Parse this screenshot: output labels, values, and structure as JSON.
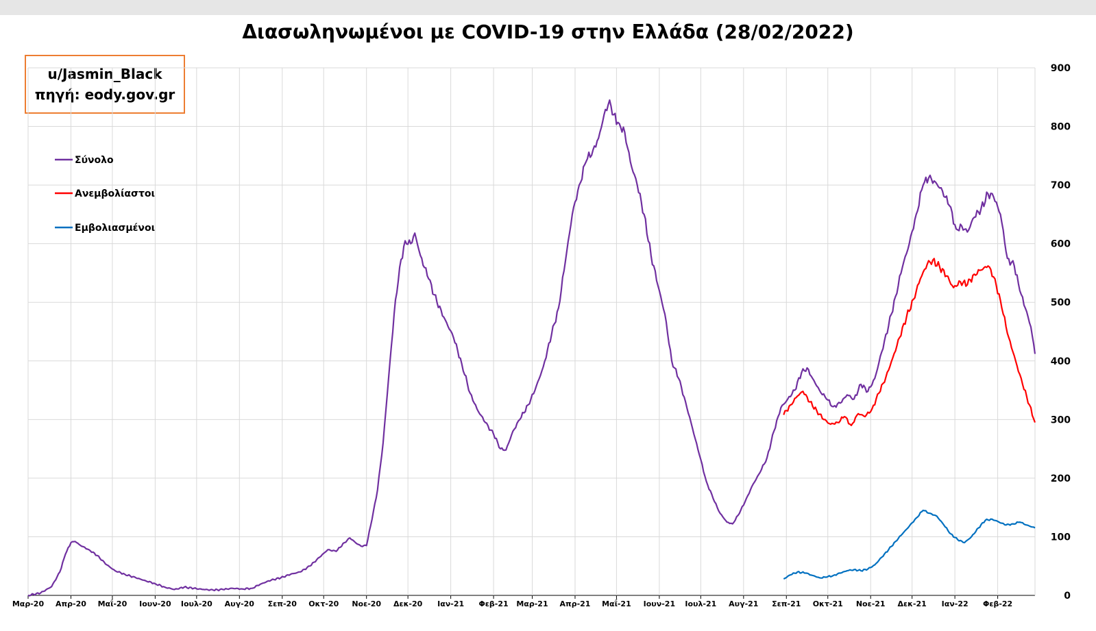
{
  "chart_data": {
    "type": "line",
    "title": "Διασωληνωμένοι με COVID-19 στην Ελλάδα (28/02/2022)",
    "credit": {
      "line1": "u/Jasmin_Black",
      "line2": "πηγή: eody.gov.gr"
    },
    "x_tick_labels": [
      "Μαρ-20",
      "Απρ-20",
      "Μαΐ-20",
      "Ιουν-20",
      "Ιουλ-20",
      "Αυγ-20",
      "Σεπ-20",
      "Οκτ-20",
      "Νοε-20",
      "Δεκ-20",
      "Ιαν-21",
      "Φεβ-21",
      "Μαρ-21",
      "Απρ-21",
      "Μαΐ-21",
      "Ιουν-21",
      "Ιουλ-21",
      "Αυγ-21",
      "Σεπ-21",
      "Οκτ-21",
      "Νοε-21",
      "Δεκ-21",
      "Ιαν-22",
      "Φεβ-22"
    ],
    "x_range": [
      "2020-03-01",
      "2022-02-28"
    ],
    "y_ticks": [
      0,
      100,
      200,
      300,
      400,
      500,
      600,
      700,
      800,
      900
    ],
    "ylim": [
      0,
      900
    ],
    "y_axis_position": "right",
    "grid": true,
    "legend_position": "left",
    "series": [
      {
        "name": "Σύνολο",
        "color": "#7030a0",
        "points": [
          [
            "2020-03-01",
            0
          ],
          [
            "2020-03-10",
            4
          ],
          [
            "2020-03-18",
            15
          ],
          [
            "2020-03-24",
            40
          ],
          [
            "2020-03-28",
            70
          ],
          [
            "2020-04-01",
            90
          ],
          [
            "2020-04-04",
            92
          ],
          [
            "2020-04-08",
            85
          ],
          [
            "2020-04-14",
            78
          ],
          [
            "2020-04-20",
            68
          ],
          [
            "2020-04-27",
            52
          ],
          [
            "2020-05-03",
            42
          ],
          [
            "2020-05-10",
            36
          ],
          [
            "2020-05-18",
            30
          ],
          [
            "2020-05-25",
            25
          ],
          [
            "2020-06-01",
            20
          ],
          [
            "2020-06-08",
            14
          ],
          [
            "2020-06-15",
            10
          ],
          [
            "2020-06-22",
            14
          ],
          [
            "2020-06-29",
            12
          ],
          [
            "2020-07-06",
            10
          ],
          [
            "2020-07-13",
            9
          ],
          [
            "2020-07-20",
            10
          ],
          [
            "2020-07-27",
            12
          ],
          [
            "2020-08-03",
            11
          ],
          [
            "2020-08-10",
            12
          ],
          [
            "2020-08-17",
            20
          ],
          [
            "2020-08-24",
            26
          ],
          [
            "2020-08-31",
            30
          ],
          [
            "2020-09-07",
            36
          ],
          [
            "2020-09-14",
            40
          ],
          [
            "2020-09-21",
            50
          ],
          [
            "2020-09-28",
            65
          ],
          [
            "2020-10-04",
            78
          ],
          [
            "2020-10-10",
            75
          ],
          [
            "2020-10-16",
            90
          ],
          [
            "2020-10-20",
            98
          ],
          [
            "2020-10-24",
            90
          ],
          [
            "2020-10-28",
            84
          ],
          [
            "2020-11-01",
            85
          ],
          [
            "2020-11-05",
            130
          ],
          [
            "2020-11-09",
            180
          ],
          [
            "2020-11-13",
            260
          ],
          [
            "2020-11-17",
            370
          ],
          [
            "2020-11-21",
            480
          ],
          [
            "2020-11-25",
            560
          ],
          [
            "2020-11-29",
            605
          ],
          [
            "2020-12-03",
            600
          ],
          [
            "2020-12-06",
            618
          ],
          [
            "2020-12-10",
            580
          ],
          [
            "2020-12-16",
            540
          ],
          [
            "2020-12-22",
            500
          ],
          [
            "2020-12-28",
            470
          ],
          [
            "2021-01-03",
            440
          ],
          [
            "2021-01-09",
            395
          ],
          [
            "2021-01-15",
            345
          ],
          [
            "2021-01-20",
            318
          ],
          [
            "2021-01-26",
            295
          ],
          [
            "2021-02-01",
            275
          ],
          [
            "2021-02-06",
            250
          ],
          [
            "2021-02-10",
            248
          ],
          [
            "2021-02-15",
            280
          ],
          [
            "2021-02-20",
            300
          ],
          [
            "2021-02-26",
            325
          ],
          [
            "2021-03-03",
            350
          ],
          [
            "2021-03-09",
            390
          ],
          [
            "2021-03-15",
            445
          ],
          [
            "2021-03-20",
            490
          ],
          [
            "2021-03-25",
            570
          ],
          [
            "2021-03-30",
            650
          ],
          [
            "2021-04-04",
            700
          ],
          [
            "2021-04-09",
            740
          ],
          [
            "2021-04-14",
            760
          ],
          [
            "2021-04-18",
            780
          ],
          [
            "2021-04-22",
            820
          ],
          [
            "2021-04-26",
            845
          ],
          [
            "2021-04-29",
            820
          ],
          [
            "2021-05-03",
            805
          ],
          [
            "2021-05-07",
            790
          ],
          [
            "2021-05-11",
            740
          ],
          [
            "2021-05-16",
            700
          ],
          [
            "2021-05-21",
            650
          ],
          [
            "2021-05-26",
            580
          ],
          [
            "2021-06-01",
            520
          ],
          [
            "2021-06-05",
            480
          ],
          [
            "2021-06-10",
            400
          ],
          [
            "2021-06-15",
            370
          ],
          [
            "2021-06-20",
            330
          ],
          [
            "2021-06-25",
            285
          ],
          [
            "2021-06-30",
            240
          ],
          [
            "2021-07-05",
            195
          ],
          [
            "2021-07-10",
            165
          ],
          [
            "2021-07-15",
            140
          ],
          [
            "2021-07-20",
            125
          ],
          [
            "2021-07-24",
            122
          ],
          [
            "2021-07-29",
            140
          ],
          [
            "2021-08-03",
            165
          ],
          [
            "2021-08-08",
            190
          ],
          [
            "2021-08-13",
            210
          ],
          [
            "2021-08-18",
            235
          ],
          [
            "2021-08-23",
            280
          ],
          [
            "2021-08-28",
            320
          ],
          [
            "2021-09-02",
            335
          ],
          [
            "2021-09-07",
            350
          ],
          [
            "2021-09-12",
            380
          ],
          [
            "2021-09-16",
            388
          ],
          [
            "2021-09-20",
            370
          ],
          [
            "2021-09-25",
            350
          ],
          [
            "2021-09-30",
            335
          ],
          [
            "2021-10-05",
            322
          ],
          [
            "2021-10-10",
            328
          ],
          [
            "2021-10-15",
            342
          ],
          [
            "2021-10-20",
            335
          ],
          [
            "2021-10-25",
            360
          ],
          [
            "2021-10-30",
            348
          ],
          [
            "2021-11-04",
            370
          ],
          [
            "2021-11-09",
            415
          ],
          [
            "2021-11-14",
            460
          ],
          [
            "2021-11-19",
            510
          ],
          [
            "2021-11-24",
            560
          ],
          [
            "2021-11-29",
            600
          ],
          [
            "2021-12-04",
            650
          ],
          [
            "2021-12-09",
            700
          ],
          [
            "2021-12-13",
            712
          ],
          [
            "2021-12-18",
            705
          ],
          [
            "2021-12-23",
            690
          ],
          [
            "2021-12-28",
            665
          ],
          [
            "2022-01-02",
            625
          ],
          [
            "2022-01-06",
            630
          ],
          [
            "2022-01-10",
            620
          ],
          [
            "2022-01-15",
            645
          ],
          [
            "2022-01-20",
            660
          ],
          [
            "2022-01-25",
            685
          ],
          [
            "2022-01-29",
            680
          ],
          [
            "2022-02-03",
            650
          ],
          [
            "2022-02-08",
            575
          ],
          [
            "2022-02-13",
            562
          ],
          [
            "2022-02-17",
            520
          ],
          [
            "2022-02-21",
            490
          ],
          [
            "2022-02-25",
            458
          ],
          [
            "2022-02-28",
            412
          ]
        ]
      },
      {
        "name": "Ανεμβολίαστοι",
        "color": "#ff0000",
        "points": [
          [
            "2021-08-30",
            308
          ],
          [
            "2021-09-04",
            325
          ],
          [
            "2021-09-09",
            340
          ],
          [
            "2021-09-13",
            348
          ],
          [
            "2021-09-18",
            330
          ],
          [
            "2021-09-23",
            315
          ],
          [
            "2021-09-28",
            300
          ],
          [
            "2021-10-03",
            292
          ],
          [
            "2021-10-08",
            295
          ],
          [
            "2021-10-13",
            305
          ],
          [
            "2021-10-18",
            290
          ],
          [
            "2021-10-23",
            310
          ],
          [
            "2021-10-28",
            305
          ],
          [
            "2021-11-02",
            318
          ],
          [
            "2021-11-07",
            345
          ],
          [
            "2021-11-12",
            372
          ],
          [
            "2021-11-17",
            405
          ],
          [
            "2021-11-22",
            440
          ],
          [
            "2021-11-27",
            475
          ],
          [
            "2021-12-02",
            505
          ],
          [
            "2021-12-07",
            540
          ],
          [
            "2021-12-12",
            565
          ],
          [
            "2021-12-16",
            572
          ],
          [
            "2021-12-21",
            560
          ],
          [
            "2021-12-26",
            545
          ],
          [
            "2021-12-31",
            525
          ],
          [
            "2022-01-05",
            535
          ],
          [
            "2022-01-10",
            530
          ],
          [
            "2022-01-15",
            548
          ],
          [
            "2022-01-20",
            555
          ],
          [
            "2022-01-25",
            562
          ],
          [
            "2022-01-30",
            540
          ],
          [
            "2022-02-04",
            490
          ],
          [
            "2022-02-09",
            440
          ],
          [
            "2022-02-14",
            400
          ],
          [
            "2022-02-19",
            360
          ],
          [
            "2022-02-24",
            325
          ],
          [
            "2022-02-28",
            295
          ]
        ]
      },
      {
        "name": "Εμβολιασμένοι",
        "color": "#0070c0",
        "points": [
          [
            "2021-08-30",
            28
          ],
          [
            "2021-09-04",
            35
          ],
          [
            "2021-09-09",
            40
          ],
          [
            "2021-09-15",
            38
          ],
          [
            "2021-09-20",
            34
          ],
          [
            "2021-09-25",
            30
          ],
          [
            "2021-09-30",
            31
          ],
          [
            "2021-10-05",
            34
          ],
          [
            "2021-10-10",
            38
          ],
          [
            "2021-10-15",
            42
          ],
          [
            "2021-10-20",
            44
          ],
          [
            "2021-10-25",
            42
          ],
          [
            "2021-10-30",
            45
          ],
          [
            "2021-11-04",
            52
          ],
          [
            "2021-11-09",
            65
          ],
          [
            "2021-11-14",
            78
          ],
          [
            "2021-11-19",
            92
          ],
          [
            "2021-11-24",
            105
          ],
          [
            "2021-11-29",
            118
          ],
          [
            "2021-12-04",
            132
          ],
          [
            "2021-12-09",
            145
          ],
          [
            "2021-12-14",
            140
          ],
          [
            "2021-12-19",
            135
          ],
          [
            "2021-12-24",
            120
          ],
          [
            "2021-12-29",
            105
          ],
          [
            "2022-01-03",
            95
          ],
          [
            "2022-01-08",
            90
          ],
          [
            "2022-01-13",
            100
          ],
          [
            "2022-01-18",
            115
          ],
          [
            "2022-01-23",
            128
          ],
          [
            "2022-01-28",
            130
          ],
          [
            "2022-02-02",
            125
          ],
          [
            "2022-02-07",
            120
          ],
          [
            "2022-02-12",
            122
          ],
          [
            "2022-02-17",
            125
          ],
          [
            "2022-02-22",
            120
          ],
          [
            "2022-02-28",
            115
          ]
        ]
      }
    ]
  }
}
